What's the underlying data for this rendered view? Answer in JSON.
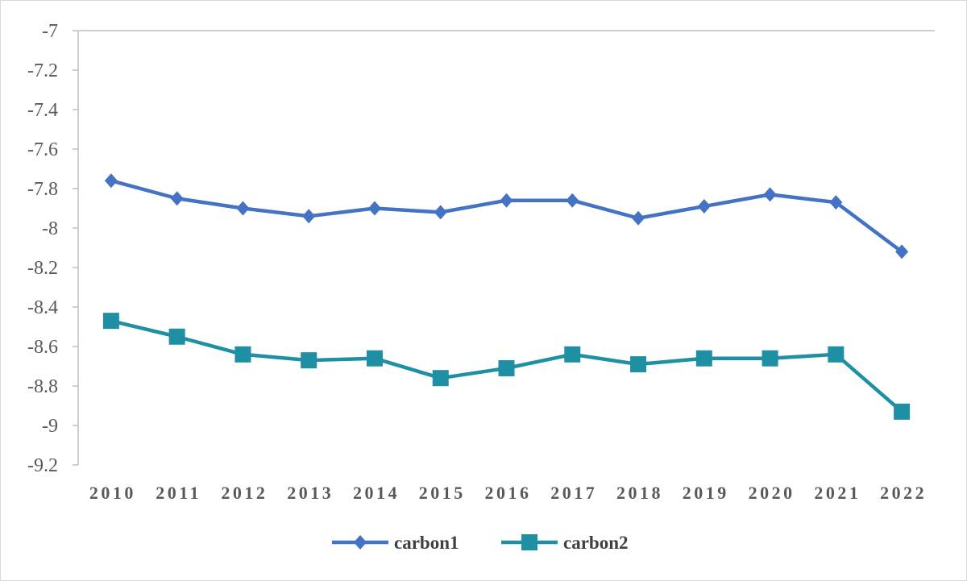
{
  "chart_data": {
    "type": "line",
    "categories": [
      "2010",
      "2011",
      "2012",
      "2013",
      "2014",
      "2015",
      "2016",
      "2017",
      "2018",
      "2019",
      "2020",
      "2021",
      "2022"
    ],
    "ylim": [
      -9.2,
      -7
    ],
    "yticks": [
      -7,
      -7.2,
      -7.4,
      -7.6,
      -7.8,
      -8,
      -8.2,
      -8.4,
      -8.6,
      -8.8,
      -9,
      -9.2
    ],
    "ytick_labels": [
      "-7",
      "-7.2",
      "-7.4",
      "-7.6",
      "-7.8",
      "-8",
      "-8.2",
      "-8.4",
      "-8.6",
      "-8.8",
      "-9",
      "-9.2"
    ],
    "grid": false,
    "legend_position": "bottom",
    "series": [
      {
        "name": "carbon1",
        "color": "#4472C4",
        "marker": "diamond",
        "values": [
          -7.76,
          -7.85,
          -7.9,
          -7.94,
          -7.9,
          -7.92,
          -7.86,
          -7.86,
          -7.95,
          -7.89,
          -7.83,
          -7.87,
          -8.12
        ]
      },
      {
        "name": "carbon2",
        "color": "#1F8FA3",
        "marker": "square",
        "values": [
          -8.47,
          -8.55,
          -8.64,
          -8.67,
          -8.66,
          -8.76,
          -8.71,
          -8.64,
          -8.69,
          -8.66,
          -8.66,
          -8.64,
          -8.93
        ]
      }
    ]
  }
}
